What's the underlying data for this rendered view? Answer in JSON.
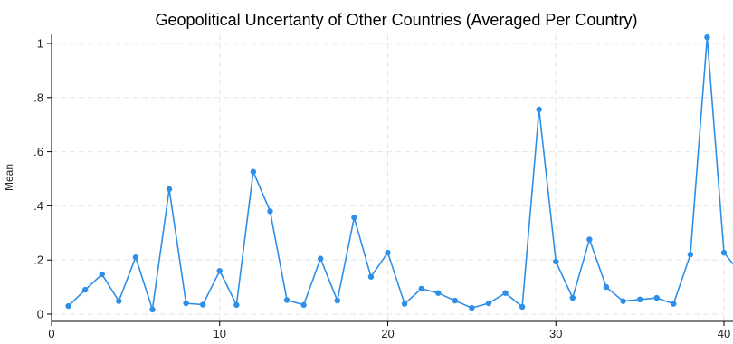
{
  "chart_data": {
    "type": "line",
    "title": "Geopolitical Uncertanty of Other Countries (Averaged Per Country)",
    "xlabel": "",
    "ylabel": "Mean",
    "xlim": [
      0,
      40
    ],
    "ylim": [
      0,
      1
    ],
    "x_ticks": [
      0,
      10,
      20,
      30,
      40
    ],
    "y_ticks": [
      0,
      0.2,
      0.4,
      0.6,
      0.8,
      1
    ],
    "y_tick_labels": [
      "0",
      ".2",
      ".4",
      ".6",
      ".8",
      "1"
    ],
    "grid": true,
    "series_color": "#2f8fe8",
    "x": [
      1,
      2,
      3,
      4,
      5,
      6,
      7,
      8,
      9,
      10,
      11,
      12,
      13,
      14,
      15,
      16,
      17,
      18,
      19,
      20,
      21,
      22,
      23,
      24,
      25,
      26,
      27,
      28,
      29,
      30,
      31,
      32,
      33,
      34,
      35,
      36,
      37,
      38,
      39,
      40,
      41
    ],
    "y": [
      0.03,
      0.09,
      0.147,
      0.048,
      0.21,
      0.017,
      0.462,
      0.04,
      0.035,
      0.16,
      0.034,
      0.526,
      0.38,
      0.052,
      0.034,
      0.205,
      0.05,
      0.357,
      0.138,
      0.227,
      0.038,
      0.094,
      0.078,
      0.05,
      0.023,
      0.04,
      0.078,
      0.027,
      0.756,
      0.194,
      0.06,
      0.276,
      0.1,
      0.048,
      0.054,
      0.06,
      0.038,
      0.22,
      1.023,
      0.227,
      0.15
    ]
  }
}
